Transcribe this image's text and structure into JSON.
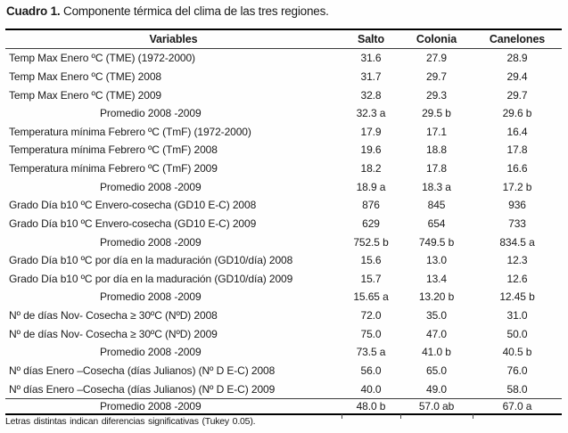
{
  "caption": {
    "label": "Cuadro 1.",
    "text": "Componente térmica del clima de las tres regiones."
  },
  "table": {
    "columns": [
      "Variables",
      "Salto",
      "Colonia",
      "Canelones"
    ],
    "rows": [
      {
        "variable": "Temp Max Enero ºC  (TME) (1972-2000)",
        "kind": "data",
        "values": [
          "31.6",
          "27.9",
          "28.9"
        ]
      },
      {
        "variable": "Temp Max Enero ºC  (TME) 2008",
        "kind": "data",
        "values": [
          "31.7",
          "29.7",
          "29.4"
        ]
      },
      {
        "variable": "Temp Max Enero ºC  (TME) 2009",
        "kind": "data",
        "values": [
          "32.8",
          "29.3",
          "29.7"
        ]
      },
      {
        "variable": "Promedio 2008 -2009",
        "kind": "promedio",
        "values": [
          "32.3 a",
          "29.5 b",
          "29.6 b"
        ]
      },
      {
        "variable": "Temperatura mínima Febrero ºC (TmF) (1972-2000)",
        "kind": "data",
        "values": [
          "17.9",
          "17.1",
          "16.4"
        ]
      },
      {
        "variable": "Temperatura mínima  Febrero ºC (TmF) 2008",
        "kind": "data",
        "values": [
          "19.6",
          "18.8",
          "17.8"
        ]
      },
      {
        "variable": "Temperatura mínima  Febrero ºC (TmF) 2009",
        "kind": "data",
        "values": [
          "18.2",
          "17.8",
          "16.6"
        ]
      },
      {
        "variable": "Promedio 2008 -2009",
        "kind": "promedio",
        "values": [
          "18.9 a",
          "18.3 a",
          "17.2 b"
        ]
      },
      {
        "variable": "Grado Día b10 ºC Envero-cosecha (GD10 E-C)  2008",
        "kind": "data",
        "values": [
          "876",
          "845",
          "936"
        ]
      },
      {
        "variable": "Grado Día b10 ºC Envero-cosecha (GD10 E-C)  2009",
        "kind": "data",
        "values": [
          "629",
          "654",
          "733"
        ]
      },
      {
        "variable": "Promedio 2008 -2009",
        "kind": "promedio",
        "values": [
          "752.5 b",
          "749.5 b",
          "834.5 a"
        ]
      },
      {
        "variable": "Grado Día b10 ºC por día en la maduración  (GD10/día) 2008",
        "kind": "data",
        "values": [
          "15.6",
          "13.0",
          "12.3"
        ]
      },
      {
        "variable": "Grado Día b10 ºC por día en la maduración  (GD10/día) 2009",
        "kind": "data",
        "values": [
          "15.7",
          "13.4",
          "12.6"
        ]
      },
      {
        "variable": "Promedio 2008 -2009",
        "kind": "promedio",
        "values": [
          "15.65 a",
          "13.20 b",
          "12.45 b"
        ]
      },
      {
        "variable": "Nº de días Nov- Cosecha ≥ 30ºC (NºD) 2008",
        "kind": "data",
        "values": [
          "72.0",
          "35.0",
          "31.0"
        ]
      },
      {
        "variable": "Nº de días Nov- Cosecha ≥ 30ºC (NºD) 2009",
        "kind": "data",
        "values": [
          "75.0",
          "47.0",
          "50.0"
        ]
      },
      {
        "variable": "Promedio 2008 -2009",
        "kind": "promedio",
        "values": [
          "73.5 a",
          "41.0 b",
          "40.5 b"
        ]
      },
      {
        "variable": "Nº días Enero –Cosecha (días Julianos) (Nº D E-C) 2008",
        "kind": "data",
        "values": [
          "56.0",
          "65.0",
          "76.0"
        ]
      },
      {
        "variable": "Nº días Enero –Cosecha (días Julianos) (Nº D E-C) 2009",
        "kind": "data",
        "values": [
          "40.0",
          "49.0",
          "58.0"
        ]
      },
      {
        "variable": "Promedio 2008 -2009",
        "kind": "promedio-final",
        "values": [
          "48.0 b",
          "57.0 ab",
          "67.0 a"
        ]
      }
    ]
  },
  "footnote": "Letras distintas indican diferencias significativas (Tukey 0.05)."
}
